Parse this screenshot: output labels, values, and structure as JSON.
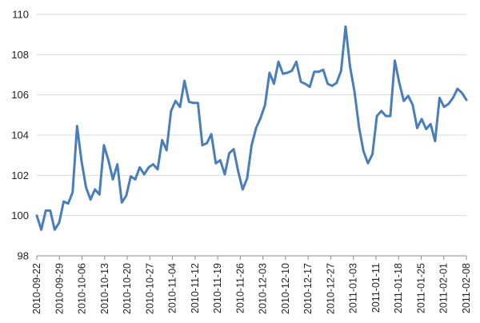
{
  "chart_data": {
    "type": "line",
    "title": "",
    "xlabel": "",
    "ylabel": "",
    "ylim": [
      98,
      110
    ],
    "yticks": [
      "98",
      "100",
      "102",
      "104",
      "106",
      "108",
      "110"
    ],
    "xticks": [
      "2010-09-22",
      "2010-09-29",
      "2010-10-06",
      "2010-10-13",
      "2010-10-20",
      "2010-10-27",
      "2010-11-04",
      "2010-11-12",
      "2010-11-19",
      "2010-11-26",
      "2010-12-03",
      "2010-12-10",
      "2010-12-17",
      "2010-12-27",
      "2011-01-03",
      "2011-01-11",
      "2011-01-18",
      "2011-01-25",
      "2011-02-01",
      "2011-02-08"
    ],
    "grid": true,
    "legend": "none",
    "line_color": "#4a7ebb",
    "series": [
      {
        "values": [
          100.0,
          99.3,
          100.25,
          100.25,
          99.3,
          99.65,
          100.7,
          100.6,
          101.15,
          104.45,
          102.7,
          101.4,
          100.8,
          101.3,
          101.05,
          103.5,
          102.75,
          101.8,
          102.55,
          100.65,
          101.0,
          101.95,
          101.8,
          102.4,
          102.05,
          102.4,
          102.55,
          102.3,
          103.75,
          103.25,
          105.2,
          105.7,
          105.4,
          106.7,
          105.65,
          105.6,
          105.6,
          103.5,
          103.6,
          104.05,
          102.6,
          102.75,
          102.05,
          103.1,
          103.3,
          102.2,
          101.3,
          101.85,
          103.5,
          104.35,
          104.85,
          105.5,
          107.1,
          106.55,
          107.65,
          107.05,
          107.1,
          107.2,
          107.65,
          106.65,
          106.55,
          106.4,
          107.15,
          107.15,
          107.25,
          106.55,
          106.45,
          106.6,
          107.2,
          109.4,
          107.4,
          106.15,
          104.4,
          103.2,
          102.6,
          103.05,
          104.95,
          105.2,
          104.95,
          104.95,
          107.7,
          106.6,
          105.7,
          105.95,
          105.5,
          104.35,
          104.8,
          104.3,
          104.55,
          103.7,
          105.85,
          105.4,
          105.55,
          105.85,
          106.3,
          106.1,
          105.75
        ]
      }
    ]
  }
}
